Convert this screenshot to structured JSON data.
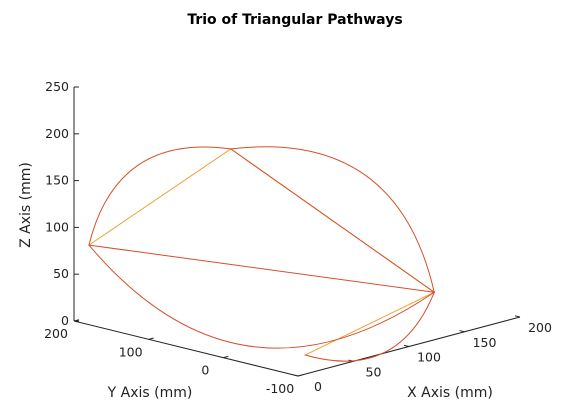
{
  "chart_data": {
    "type": "line3d",
    "title": "Trio of Triangular Pathways",
    "xlabel": "X Axis (mm)",
    "ylabel": "Y Axis (mm)",
    "zlabel": "Z Axis (mm)",
    "xlim": [
      0,
      200
    ],
    "ylim": [
      -100,
      200
    ],
    "zlim": [
      0,
      250
    ],
    "xticks": [
      "0",
      "50",
      "100",
      "150",
      "200"
    ],
    "yticks": [
      "-100",
      "0",
      "100",
      "200"
    ],
    "zticks": [
      "0",
      "50",
      "100",
      "150",
      "200",
      "250"
    ],
    "grid": false,
    "vertices": {
      "top": [
        0,
        -10,
        225
      ],
      "left": [
        0,
        180,
        85
      ],
      "right": [
        190,
        0,
        10
      ],
      "bottom": [
        40,
        -50,
        0
      ]
    },
    "series": [
      {
        "color": "#f0a030",
        "segments": [
          {
            "from": "top",
            "to": "left",
            "kind": "straight"
          },
          {
            "from": "top",
            "to": "right",
            "kind": "straight"
          },
          {
            "from": "right",
            "to": "bottom",
            "kind": "straight"
          }
        ]
      },
      {
        "color": "#d4502a",
        "segments": [
          {
            "from": "top",
            "to": "right",
            "kind": "straight"
          },
          {
            "from": "left",
            "to": "right",
            "kind": "straight"
          },
          {
            "from": "top",
            "to": "left",
            "kind": "curved"
          },
          {
            "from": "top",
            "to": "right",
            "kind": "curved"
          },
          {
            "from": "left",
            "to": "right",
            "kind": "curved"
          },
          {
            "from": "right",
            "to": "bottom",
            "kind": "curved"
          }
        ]
      }
    ]
  }
}
